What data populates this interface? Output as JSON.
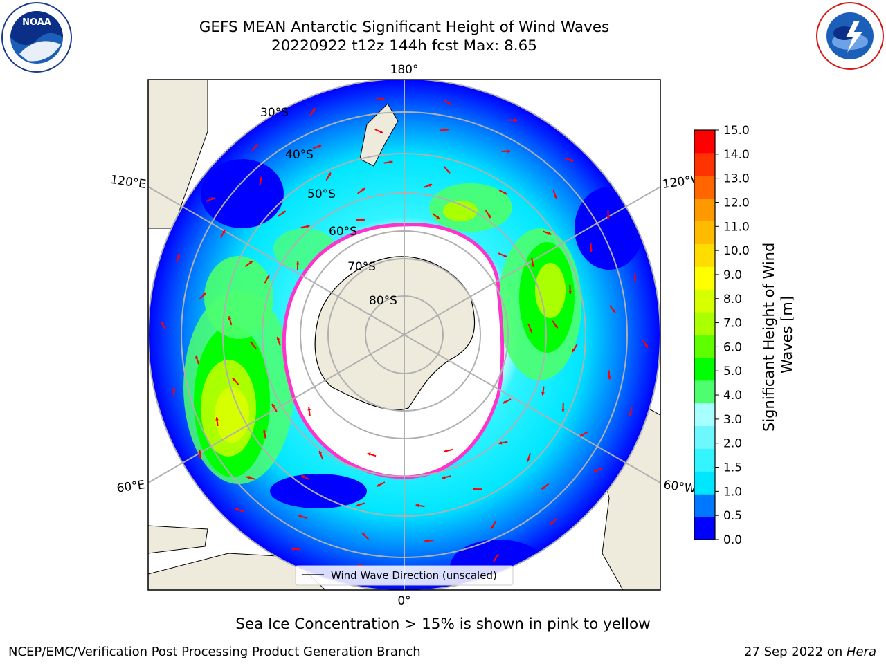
{
  "header": {
    "title_line1": "GEFS MEAN Antarctic Significant Height of Wind Waves",
    "title_line2": "20220922 t12z 144h fcst   Max: 8.65"
  },
  "logos": {
    "left": "NOAA",
    "left_ring_text": "NATIONAL OCEANIC AND ATMOSPHERIC ADMINISTRATION · U.S. DEPARTMENT OF COMMERCE",
    "right_ring_text": "NATIONAL WEATHER SERVICE"
  },
  "map": {
    "longitude_labels": {
      "top": "180°",
      "bottom": "0°",
      "upper_left": "120°E",
      "lower_left": "60°E",
      "upper_right": "120°W",
      "lower_right": "60°W"
    },
    "latitude_labels": [
      "30°S",
      "40°S",
      "50°S",
      "60°S",
      "70°S",
      "80°S"
    ],
    "legend_label": "Wind Wave Direction (unscaled)",
    "colors": {
      "land": "#efebdc",
      "ice_edge": "#ff33cc",
      "grid": "#b0b0b0",
      "arrow": "#ff0000"
    }
  },
  "colorbar": {
    "label": "Significant Height of Wind Waves [m]",
    "label_line1": "Significant Height of Wind",
    "label_line2": "Waves [m]",
    "ticks": [
      "0.0",
      "0.5",
      "1.0",
      "1.5",
      "2.0",
      "3.0",
      "4.0",
      "5.0",
      "6.0",
      "7.0",
      "8.0",
      "9.0",
      "10.0",
      "11.0",
      "12.0",
      "13.0",
      "14.0",
      "15.0"
    ],
    "colors": [
      "#0000ff",
      "#0077ff",
      "#00e6ff",
      "#33f4ff",
      "#6df7ff",
      "#a8ffff",
      "#4dff6e",
      "#00ff00",
      "#5eff00",
      "#aaff00",
      "#d6ff00",
      "#ffff00",
      "#ffdd00",
      "#ffbb00",
      "#ff9900",
      "#ff6600",
      "#ff3300",
      "#ff0000"
    ]
  },
  "footer": {
    "caption": "Sea Ice Concentration > 15% is shown in pink to yellow",
    "credit_left": "NCEP/EMC/Verification Post Processing Product Generation Branch",
    "date": "27 Sep 2022 on ",
    "machine": "Hera"
  }
}
